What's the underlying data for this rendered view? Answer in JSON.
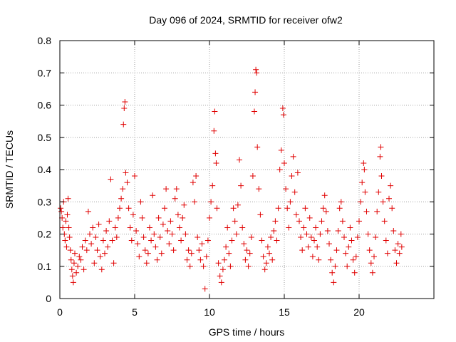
{
  "chart_data": {
    "type": "scatter",
    "title": "Day 096 of 2024, SRMTID for receiver ofw2",
    "xlabel": "GPS time / hours",
    "ylabel": "SRMTID / TECUs",
    "xlim": [
      0,
      25
    ],
    "ylim": [
      0,
      0.8
    ],
    "xticks": [
      "0",
      "5",
      "10",
      "15",
      "20"
    ],
    "yticks": [
      "0",
      "0.1",
      "0.2",
      "0.3",
      "0.4",
      "0.5",
      "0.6",
      "0.7",
      "0.8"
    ],
    "grid": true,
    "marker": "plus",
    "color": "#e00000",
    "series": [
      {
        "name": "SRMTID",
        "points": [
          [
            0.05,
            0.28
          ],
          [
            0.1,
            0.27
          ],
          [
            0.15,
            0.25
          ],
          [
            0.2,
            0.22
          ],
          [
            0.25,
            0.3
          ],
          [
            0.3,
            0.2
          ],
          [
            0.35,
            0.18
          ],
          [
            0.4,
            0.24
          ],
          [
            0.45,
            0.16
          ],
          [
            0.5,
            0.26
          ],
          [
            0.55,
            0.31
          ],
          [
            0.6,
            0.22
          ],
          [
            0.65,
            0.19
          ],
          [
            0.7,
            0.15
          ],
          [
            0.75,
            0.12
          ],
          [
            0.8,
            0.09
          ],
          [
            0.85,
            0.07
          ],
          [
            0.9,
            0.05
          ],
          [
            0.95,
            0.11
          ],
          [
            1.0,
            0.14
          ],
          [
            1.1,
            0.08
          ],
          [
            1.2,
            0.1
          ],
          [
            1.3,
            0.13
          ],
          [
            1.4,
            0.12
          ],
          [
            1.5,
            0.16
          ],
          [
            1.6,
            0.09
          ],
          [
            1.7,
            0.18
          ],
          [
            1.8,
            0.15
          ],
          [
            1.9,
            0.27
          ],
          [
            2.0,
            0.2
          ],
          [
            2.1,
            0.17
          ],
          [
            2.2,
            0.22
          ],
          [
            2.3,
            0.11
          ],
          [
            2.4,
            0.19
          ],
          [
            2.5,
            0.15
          ],
          [
            2.6,
            0.23
          ],
          [
            2.7,
            0.13
          ],
          [
            2.8,
            0.09
          ],
          [
            2.9,
            0.18
          ],
          [
            3.0,
            0.14
          ],
          [
            3.1,
            0.21
          ],
          [
            3.2,
            0.16
          ],
          [
            3.3,
            0.24
          ],
          [
            3.4,
            0.37
          ],
          [
            3.5,
            0.18
          ],
          [
            3.6,
            0.11
          ],
          [
            3.7,
            0.22
          ],
          [
            3.8,
            0.19
          ],
          [
            3.9,
            0.25
          ],
          [
            4.0,
            0.28
          ],
          [
            4.1,
            0.31
          ],
          [
            4.2,
            0.34
          ],
          [
            4.25,
            0.54
          ],
          [
            4.3,
            0.59
          ],
          [
            4.35,
            0.61
          ],
          [
            4.4,
            0.39
          ],
          [
            4.5,
            0.36
          ],
          [
            4.6,
            0.28
          ],
          [
            4.7,
            0.22
          ],
          [
            4.8,
            0.18
          ],
          [
            4.9,
            0.26
          ],
          [
            5.0,
            0.38
          ],
          [
            5.1,
            0.21
          ],
          [
            5.2,
            0.17
          ],
          [
            5.3,
            0.13
          ],
          [
            5.4,
            0.3
          ],
          [
            5.5,
            0.25
          ],
          [
            5.6,
            0.19
          ],
          [
            5.7,
            0.15
          ],
          [
            5.8,
            0.11
          ],
          [
            5.9,
            0.14
          ],
          [
            6.0,
            0.22
          ],
          [
            6.1,
            0.18
          ],
          [
            6.2,
            0.32
          ],
          [
            6.3,
            0.2
          ],
          [
            6.4,
            0.16
          ],
          [
            6.5,
            0.12
          ],
          [
            6.6,
            0.25
          ],
          [
            6.7,
            0.19
          ],
          [
            6.8,
            0.14
          ],
          [
            6.9,
            0.23
          ],
          [
            7.0,
            0.28
          ],
          [
            7.1,
            0.34
          ],
          [
            7.2,
            0.21
          ],
          [
            7.3,
            0.17
          ],
          [
            7.4,
            0.24
          ],
          [
            7.5,
            0.2
          ],
          [
            7.6,
            0.15
          ],
          [
            7.7,
            0.31
          ],
          [
            7.8,
            0.34
          ],
          [
            7.9,
            0.26
          ],
          [
            8.0,
            0.22
          ],
          [
            8.1,
            0.18
          ],
          [
            8.2,
            0.25
          ],
          [
            8.3,
            0.29
          ],
          [
            8.4,
            0.2
          ],
          [
            8.5,
            0.12
          ],
          [
            8.6,
            0.15
          ],
          [
            8.7,
            0.1
          ],
          [
            8.8,
            0.14
          ],
          [
            8.9,
            0.36
          ],
          [
            9.0,
            0.3
          ],
          [
            9.1,
            0.38
          ],
          [
            9.2,
            0.19
          ],
          [
            9.3,
            0.15
          ],
          [
            9.4,
            0.12
          ],
          [
            9.5,
            0.17
          ],
          [
            9.6,
            0.1
          ],
          [
            9.7,
            0.03
          ],
          [
            9.8,
            0.13
          ],
          [
            9.9,
            0.18
          ],
          [
            10.0,
            0.25
          ],
          [
            10.1,
            0.3
          ],
          [
            10.2,
            0.35
          ],
          [
            10.3,
            0.52
          ],
          [
            10.35,
            0.58
          ],
          [
            10.4,
            0.45
          ],
          [
            10.45,
            0.42
          ],
          [
            10.5,
            0.28
          ],
          [
            10.6,
            0.11
          ],
          [
            10.7,
            0.07
          ],
          [
            10.8,
            0.05
          ],
          [
            10.9,
            0.09
          ],
          [
            11.0,
            0.12
          ],
          [
            11.1,
            0.16
          ],
          [
            11.2,
            0.22
          ],
          [
            11.3,
            0.14
          ],
          [
            11.4,
            0.1
          ],
          [
            11.5,
            0.18
          ],
          [
            11.6,
            0.28
          ],
          [
            11.7,
            0.24
          ],
          [
            11.8,
            0.2
          ],
          [
            11.9,
            0.29
          ],
          [
            12.0,
            0.43
          ],
          [
            12.1,
            0.35
          ],
          [
            12.2,
            0.22
          ],
          [
            12.3,
            0.17
          ],
          [
            12.4,
            0.12
          ],
          [
            12.5,
            0.15
          ],
          [
            12.6,
            0.1
          ],
          [
            12.7,
            0.14
          ],
          [
            12.8,
            0.19
          ],
          [
            12.9,
            0.38
          ],
          [
            13.0,
            0.58
          ],
          [
            13.05,
            0.64
          ],
          [
            13.1,
            0.71
          ],
          [
            13.15,
            0.7
          ],
          [
            13.2,
            0.47
          ],
          [
            13.3,
            0.34
          ],
          [
            13.4,
            0.26
          ],
          [
            13.5,
            0.18
          ],
          [
            13.6,
            0.13
          ],
          [
            13.7,
            0.09
          ],
          [
            13.8,
            0.11
          ],
          [
            13.9,
            0.16
          ],
          [
            14.0,
            0.14
          ],
          [
            14.1,
            0.19
          ],
          [
            14.2,
            0.12
          ],
          [
            14.3,
            0.21
          ],
          [
            14.4,
            0.24
          ],
          [
            14.5,
            0.18
          ],
          [
            14.6,
            0.28
          ],
          [
            14.7,
            0.4
          ],
          [
            14.8,
            0.46
          ],
          [
            14.9,
            0.59
          ],
          [
            14.95,
            0.57
          ],
          [
            15.0,
            0.42
          ],
          [
            15.1,
            0.34
          ],
          [
            15.2,
            0.28
          ],
          [
            15.3,
            0.22
          ],
          [
            15.4,
            0.3
          ],
          [
            15.5,
            0.38
          ],
          [
            15.6,
            0.44
          ],
          [
            15.7,
            0.33
          ],
          [
            15.8,
            0.26
          ],
          [
            15.9,
            0.39
          ],
          [
            16.0,
            0.24
          ],
          [
            16.1,
            0.19
          ],
          [
            16.2,
            0.15
          ],
          [
            16.3,
            0.22
          ],
          [
            16.4,
            0.28
          ],
          [
            16.5,
            0.2
          ],
          [
            16.6,
            0.16
          ],
          [
            16.7,
            0.25
          ],
          [
            16.8,
            0.19
          ],
          [
            16.9,
            0.13
          ],
          [
            17.0,
            0.18
          ],
          [
            17.1,
            0.22
          ],
          [
            17.2,
            0.16
          ],
          [
            17.3,
            0.12
          ],
          [
            17.4,
            0.2
          ],
          [
            17.5,
            0.24
          ],
          [
            17.6,
            0.28
          ],
          [
            17.7,
            0.32
          ],
          [
            17.8,
            0.27
          ],
          [
            17.9,
            0.21
          ],
          [
            18.0,
            0.17
          ],
          [
            18.1,
            0.12
          ],
          [
            18.2,
            0.08
          ],
          [
            18.3,
            0.05
          ],
          [
            18.4,
            0.1
          ],
          [
            18.5,
            0.15
          ],
          [
            18.6,
            0.21
          ],
          [
            18.7,
            0.28
          ],
          [
            18.8,
            0.3
          ],
          [
            18.9,
            0.24
          ],
          [
            19.0,
            0.19
          ],
          [
            19.1,
            0.14
          ],
          [
            19.2,
            0.1
          ],
          [
            19.3,
            0.16
          ],
          [
            19.4,
            0.22
          ],
          [
            19.5,
            0.18
          ],
          [
            19.6,
            0.12
          ],
          [
            19.7,
            0.08
          ],
          [
            19.8,
            0.13
          ],
          [
            19.9,
            0.19
          ],
          [
            20.0,
            0.24
          ],
          [
            20.1,
            0.3
          ],
          [
            20.2,
            0.36
          ],
          [
            20.3,
            0.42
          ],
          [
            20.35,
            0.4
          ],
          [
            20.4,
            0.33
          ],
          [
            20.5,
            0.27
          ],
          [
            20.6,
            0.2
          ],
          [
            20.7,
            0.15
          ],
          [
            20.8,
            0.11
          ],
          [
            20.9,
            0.08
          ],
          [
            21.0,
            0.13
          ],
          [
            21.1,
            0.19
          ],
          [
            21.2,
            0.27
          ],
          [
            21.3,
            0.33
          ],
          [
            21.4,
            0.44
          ],
          [
            21.45,
            0.47
          ],
          [
            21.5,
            0.38
          ],
          [
            21.6,
            0.3
          ],
          [
            21.7,
            0.24
          ],
          [
            21.8,
            0.18
          ],
          [
            21.9,
            0.14
          ],
          [
            22.0,
            0.31
          ],
          [
            22.1,
            0.35
          ],
          [
            22.2,
            0.28
          ],
          [
            22.3,
            0.21
          ],
          [
            22.4,
            0.15
          ],
          [
            22.5,
            0.11
          ],
          [
            22.6,
            0.17
          ],
          [
            22.7,
            0.14
          ],
          [
            22.8,
            0.2
          ],
          [
            22.85,
            0.16
          ]
        ]
      }
    ]
  }
}
